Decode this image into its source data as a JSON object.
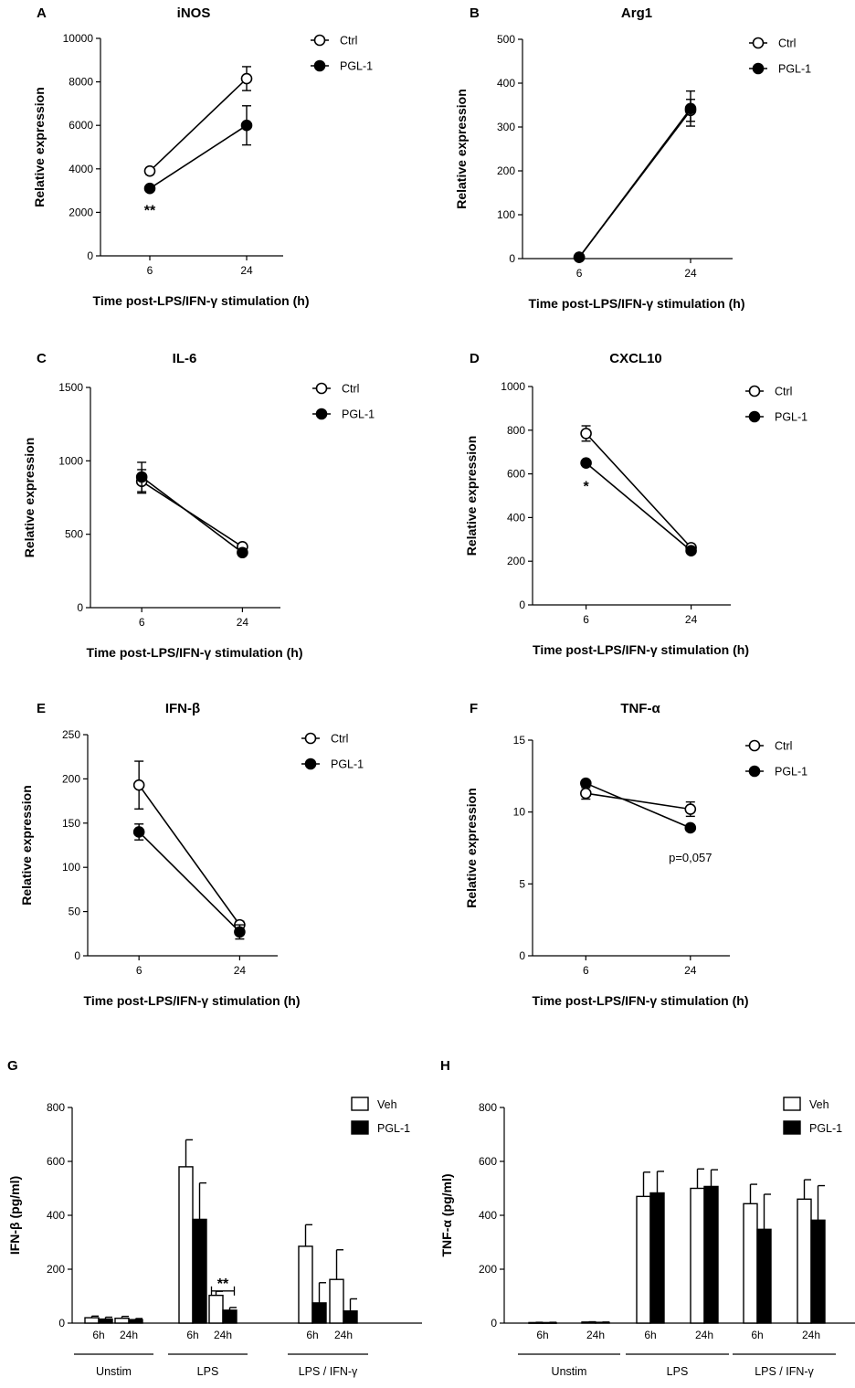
{
  "chart_data": [
    {
      "panel": "A",
      "type": "line",
      "title": "iNOS",
      "xlabel": "Time post-LPS/IFN-γ stimulation (h)",
      "ylabel": "Relative expression",
      "categories": [
        "6",
        "24"
      ],
      "ylim": [
        0,
        10000
      ],
      "yticks": [
        0,
        2000,
        4000,
        6000,
        8000,
        10000
      ],
      "series": [
        {
          "name": "Ctrl",
          "marker": "open",
          "values": [
            3900,
            8150
          ],
          "err": [
            150,
            550
          ]
        },
        {
          "name": "PGL-1",
          "marker": "filled",
          "values": [
            3100,
            6000
          ],
          "err": [
            100,
            900
          ]
        }
      ],
      "annotations": [
        {
          "text": "**",
          "category": "6",
          "y": 2200
        }
      ]
    },
    {
      "panel": "B",
      "type": "line",
      "title": "Arg1",
      "xlabel": "Time post-LPS/IFN-γ stimulation (h)",
      "ylabel": "Relative expression",
      "categories": [
        "6",
        "24"
      ],
      "ylim": [
        0,
        500
      ],
      "yticks": [
        0,
        100,
        200,
        300,
        400,
        500
      ],
      "series": [
        {
          "name": "Ctrl",
          "marker": "open",
          "values": [
            3,
            338
          ],
          "err": [
            2,
            25
          ]
        },
        {
          "name": "PGL-1",
          "marker": "filled",
          "values": [
            3,
            342
          ],
          "err": [
            2,
            40
          ]
        }
      ],
      "annotations": []
    },
    {
      "panel": "C",
      "type": "line",
      "title": "IL-6",
      "xlabel": "Time post-LPS/IFN-γ stimulation (h)",
      "ylabel": "Relative expression",
      "categories": [
        "6",
        "24"
      ],
      "ylim": [
        0,
        1500
      ],
      "yticks": [
        0,
        500,
        1000,
        1500
      ],
      "series": [
        {
          "name": "Ctrl",
          "marker": "open",
          "values": [
            860,
            415
          ],
          "err": [
            80,
            20
          ]
        },
        {
          "name": "PGL-1",
          "marker": "filled",
          "values": [
            890,
            375
          ],
          "err": [
            100,
            15
          ]
        }
      ],
      "annotations": []
    },
    {
      "panel": "D",
      "type": "line",
      "title": "CXCL10",
      "xlabel": "Time post-LPS/IFN-γ stimulation (h)",
      "ylabel": "Relative expression",
      "categories": [
        "6",
        "24"
      ],
      "ylim": [
        0,
        1000
      ],
      "yticks": [
        0,
        200,
        400,
        600,
        800,
        1000
      ],
      "series": [
        {
          "name": "Ctrl",
          "marker": "open",
          "values": [
            785,
            262
          ],
          "err": [
            35,
            10
          ]
        },
        {
          "name": "PGL-1",
          "marker": "filled",
          "values": [
            650,
            248
          ],
          "err": [
            10,
            8
          ]
        }
      ],
      "annotations": [
        {
          "text": "*",
          "category": "6",
          "y": 555
        }
      ]
    },
    {
      "panel": "E",
      "type": "line",
      "title": "IFN-β",
      "xlabel": "Time post-LPS/IFN-γ stimulation (h)",
      "ylabel": "Relative expression",
      "categories": [
        "6",
        "24"
      ],
      "ylim": [
        0,
        250
      ],
      "yticks": [
        0,
        50,
        100,
        150,
        200,
        250
      ],
      "series": [
        {
          "name": "Ctrl",
          "marker": "open",
          "values": [
            193,
            35
          ],
          "err": [
            27,
            4
          ]
        },
        {
          "name": "PGL-1",
          "marker": "filled",
          "values": [
            140,
            27
          ],
          "err": [
            9,
            8
          ]
        }
      ],
      "annotations": []
    },
    {
      "panel": "F",
      "type": "line",
      "title": "TNF-α",
      "xlabel": "Time post-LPS/IFN-γ stimulation (h)",
      "ylabel": "Relative expression",
      "categories": [
        "6",
        "24"
      ],
      "ylim": [
        0,
        15
      ],
      "yticks": [
        0,
        5,
        10,
        15
      ],
      "series": [
        {
          "name": "Ctrl",
          "marker": "open",
          "values": [
            11.3,
            10.2
          ],
          "err": [
            0.4,
            0.5
          ]
        },
        {
          "name": "PGL-1",
          "marker": "filled",
          "values": [
            12.0,
            8.9
          ],
          "err": [
            0.2,
            0.2
          ]
        }
      ],
      "annotations": [
        {
          "text": "p=0,057",
          "category": "24",
          "y": 6.8
        }
      ]
    },
    {
      "panel": "G",
      "type": "bar",
      "title": "",
      "ylabel": "IFN-β (pg/ml)",
      "ylim": [
        0,
        800
      ],
      "yticks": [
        0,
        200,
        400,
        600,
        800
      ],
      "categories": [
        "6h",
        "24h",
        "6h",
        "24h",
        "6h",
        "24h"
      ],
      "groups": [
        {
          "label": "Unstim",
          "span": [
            0,
            1
          ]
        },
        {
          "label": "LPS",
          "span": [
            2,
            3
          ]
        },
        {
          "label": "LPS / IFN-γ",
          "span": [
            4,
            5
          ]
        }
      ],
      "series": [
        {
          "name": "Veh",
          "fill": "open",
          "values": [
            20,
            18,
            580,
            103,
            285,
            162
          ],
          "err": [
            6,
            7,
            100,
            15,
            80,
            110
          ]
        },
        {
          "name": "PGL-1",
          "fill": "filled",
          "values": [
            15,
            13,
            385,
            48,
            75,
            45
          ],
          "err": [
            7,
            4,
            135,
            10,
            75,
            45
          ]
        }
      ],
      "annotations": [
        {
          "text": "**",
          "category_index": 3,
          "y": 160
        }
      ]
    },
    {
      "panel": "H",
      "type": "bar",
      "title": "",
      "ylabel": "TNF-α (pg/ml)",
      "ylim": [
        0,
        800
      ],
      "yticks": [
        0,
        200,
        400,
        600,
        800
      ],
      "categories": [
        "6h",
        "24h",
        "6h",
        "24h",
        "6h",
        "24h"
      ],
      "groups": [
        {
          "label": "Unstim",
          "span": [
            0,
            1
          ]
        },
        {
          "label": "LPS",
          "span": [
            2,
            3
          ]
        },
        {
          "label": "LPS / IFN-γ",
          "span": [
            4,
            5
          ]
        }
      ],
      "series": [
        {
          "name": "Veh",
          "fill": "open",
          "values": [
            2,
            4,
            470,
            500,
            443,
            460
          ],
          "err": [
            1,
            1,
            90,
            72,
            72,
            72
          ]
        },
        {
          "name": "PGL-1",
          "fill": "filled",
          "values": [
            2,
            3,
            483,
            507,
            348,
            382
          ],
          "err": [
            1,
            1,
            80,
            62,
            130,
            128
          ]
        }
      ],
      "annotations": []
    }
  ]
}
